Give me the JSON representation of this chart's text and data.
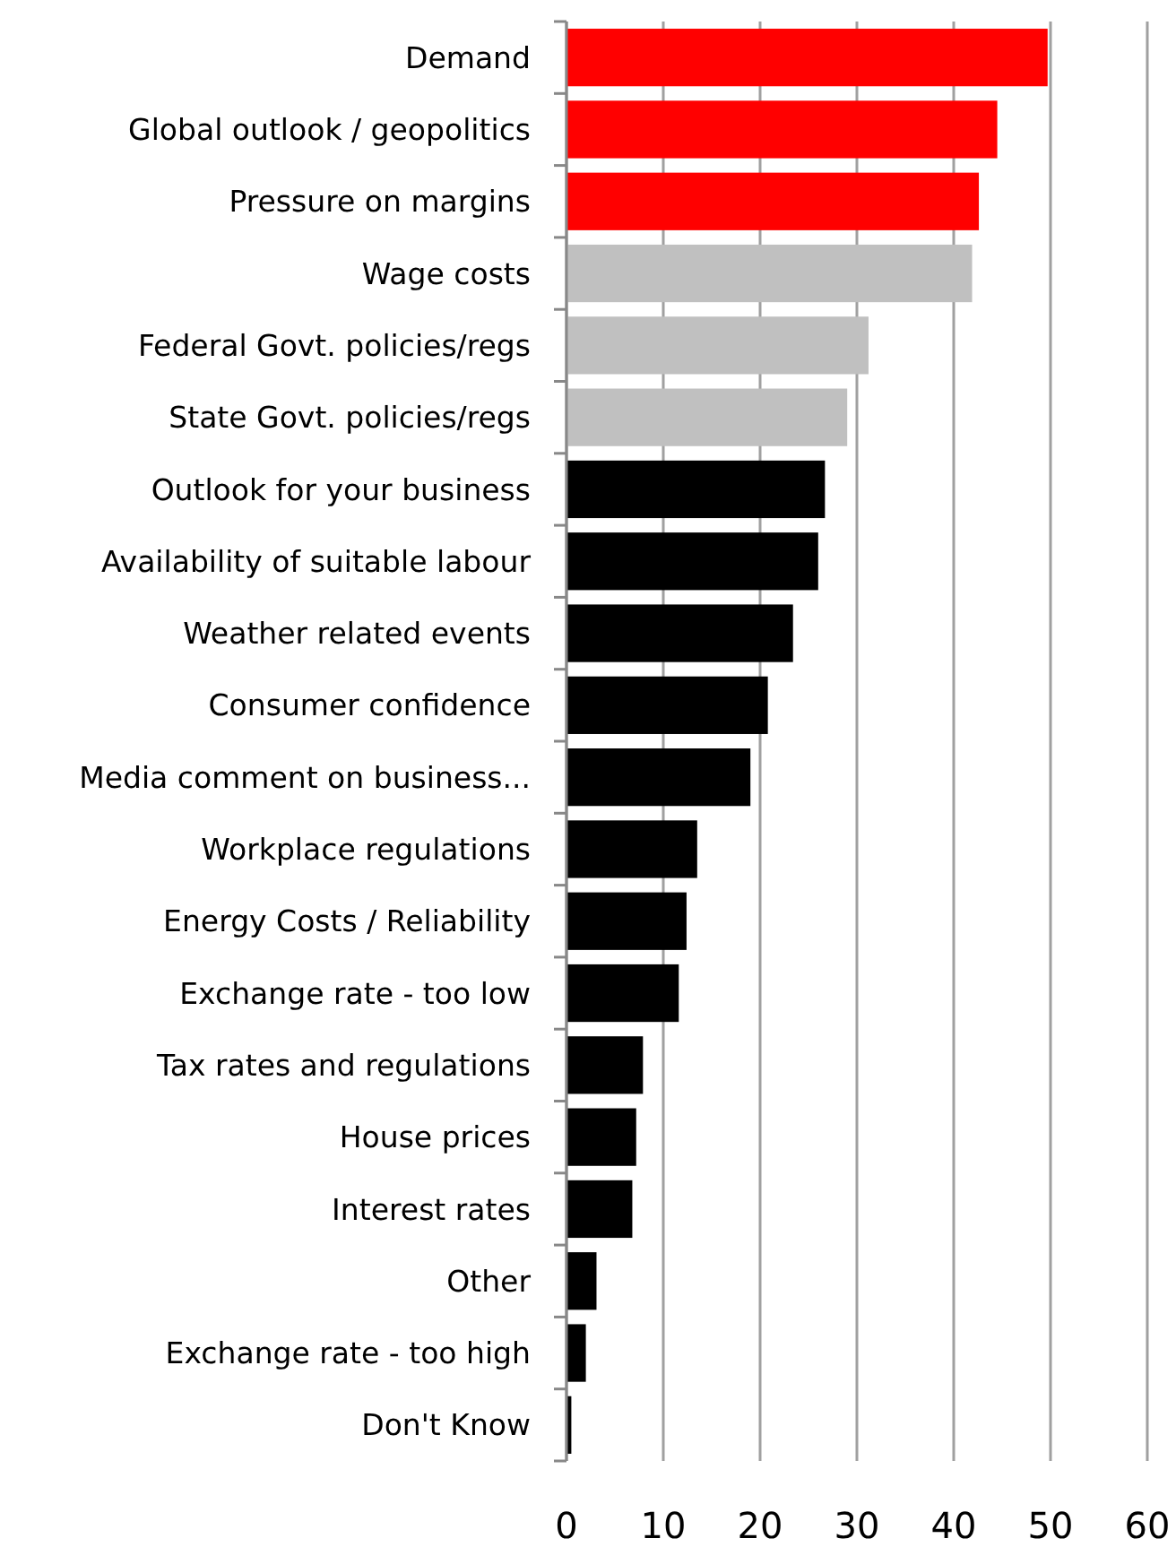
{
  "chart_data": {
    "type": "bar",
    "orientation": "horizontal",
    "categories": [
      "Demand",
      "Global outlook / geopolitics",
      "Pressure on margins",
      "Wage costs",
      "Federal Govt. policies/regs",
      "State Govt. policies/regs",
      "Outlook for your business",
      "Availability of suitable labour",
      "Weather related events",
      "Consumer confidence",
      "Media comment on business...",
      "Workplace regulations",
      "Energy Costs / Reliability",
      "Exchange rate - too low",
      "Tax rates and regulations",
      "House prices",
      "Interest rates",
      "Other",
      "Exchange rate - too high",
      "Don't Know"
    ],
    "values": [
      49.7,
      44.5,
      42.6,
      41.9,
      31.2,
      29.0,
      26.7,
      26.0,
      23.4,
      20.8,
      19.0,
      13.5,
      12.4,
      11.6,
      7.9,
      7.2,
      6.8,
      3.1,
      2.0,
      0.5
    ],
    "colors": [
      "#ff0000",
      "#ff0000",
      "#ff0000",
      "#c0c0c0",
      "#c0c0c0",
      "#c0c0c0",
      "#000000",
      "#000000",
      "#000000",
      "#000000",
      "#000000",
      "#000000",
      "#000000",
      "#000000",
      "#000000",
      "#000000",
      "#000000",
      "#000000",
      "#000000",
      "#000000"
    ],
    "xlim": [
      0,
      60
    ],
    "xticks": [
      0,
      10,
      20,
      30,
      40,
      50,
      60
    ],
    "grid": "x"
  }
}
